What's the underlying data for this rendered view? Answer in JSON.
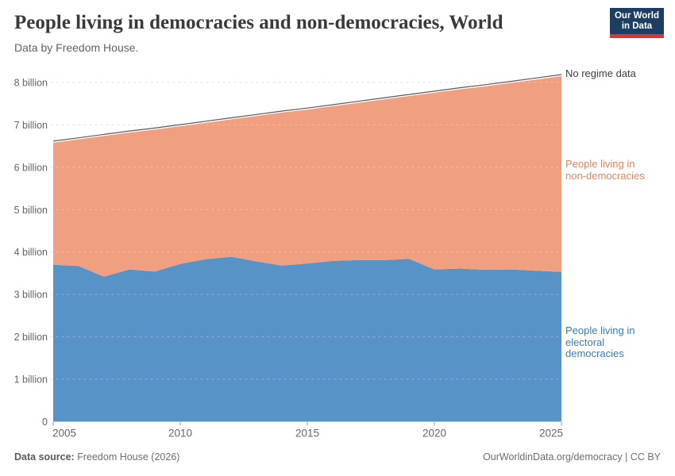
{
  "header": {
    "title": "People living in democracies and non-democracies, World",
    "subtitle": "Data by Freedom House.",
    "logo_line1": "Our World",
    "logo_line2": "in Data",
    "logo_bg": "#1d3d63",
    "logo_red": "#d7382d"
  },
  "chart_data": {
    "type": "area",
    "stacked": true,
    "title": "People living in democracies and non-democracies, World",
    "xlabel": "",
    "ylabel": "",
    "x": [
      2005,
      2006,
      2007,
      2008,
      2009,
      2010,
      2011,
      2012,
      2013,
      2014,
      2015,
      2016,
      2017,
      2018,
      2019,
      2020,
      2021,
      2022,
      2023,
      2024,
      2025
    ],
    "series": [
      {
        "name": "People living in electoral democracies",
        "color": "#5893c7",
        "label_color": "#3a7cb8",
        "values": [
          3.7,
          3.67,
          3.42,
          3.59,
          3.54,
          3.72,
          3.83,
          3.89,
          3.78,
          3.68,
          3.73,
          3.79,
          3.81,
          3.81,
          3.84,
          3.59,
          3.61,
          3.58,
          3.59,
          3.56,
          3.53
        ]
      },
      {
        "name": "People living in non-democracies",
        "color": "#f0a080",
        "label_color": "#e8825f",
        "values": [
          2.88,
          2.99,
          3.32,
          3.23,
          3.35,
          3.25,
          3.22,
          3.24,
          3.43,
          3.61,
          3.63,
          3.65,
          3.71,
          3.79,
          3.84,
          4.17,
          4.23,
          4.33,
          4.4,
          4.51,
          4.62
        ]
      },
      {
        "name": "No regime data",
        "color": "#ffffff",
        "label_color": "#3f3f3f",
        "line_color": "#5a5a5a",
        "values": [
          0.035,
          0.035,
          0.035,
          0.035,
          0.035,
          0.035,
          0.035,
          0.035,
          0.035,
          0.035,
          0.035,
          0.035,
          0.035,
          0.035,
          0.035,
          0.035,
          0.035,
          0.035,
          0.035,
          0.035,
          0.035
        ]
      }
    ],
    "xticks": [
      {
        "year": 2005,
        "label": "2005"
      },
      {
        "year": 2010,
        "label": "2010"
      },
      {
        "year": 2015,
        "label": "2015"
      },
      {
        "year": 2020,
        "label": "2020"
      },
      {
        "year": 2025,
        "label": "2025"
      }
    ],
    "yticks": [
      {
        "value": 0,
        "label": "0"
      },
      {
        "value": 1,
        "label": "1 billion"
      },
      {
        "value": 2,
        "label": "2 billion"
      },
      {
        "value": 3,
        "label": "3 billion"
      },
      {
        "value": 4,
        "label": "4 billion"
      },
      {
        "value": 5,
        "label": "5 billion"
      },
      {
        "value": 6,
        "label": "6 billion"
      },
      {
        "value": 7,
        "label": "7 billion"
      },
      {
        "value": 8,
        "label": "8 billion"
      }
    ],
    "ylim": [
      0,
      8.2
    ],
    "xlim": [
      2005,
      2025
    ],
    "grid": "dashed-horizontal",
    "legend_position": "right-annotations",
    "gridline_color": "#d4d4d4",
    "axis_text_color": "#666666"
  },
  "annotations": {
    "no_regime": "No regime data",
    "non_democracies": [
      "People living in",
      "non-democracies"
    ],
    "electoral": [
      "People living in",
      "electoral",
      "democracies"
    ]
  },
  "footer": {
    "source_label": "Data source:",
    "source_value": " Freedom House (2026)",
    "right": "OurWorldinData.org/democracy | CC BY"
  }
}
